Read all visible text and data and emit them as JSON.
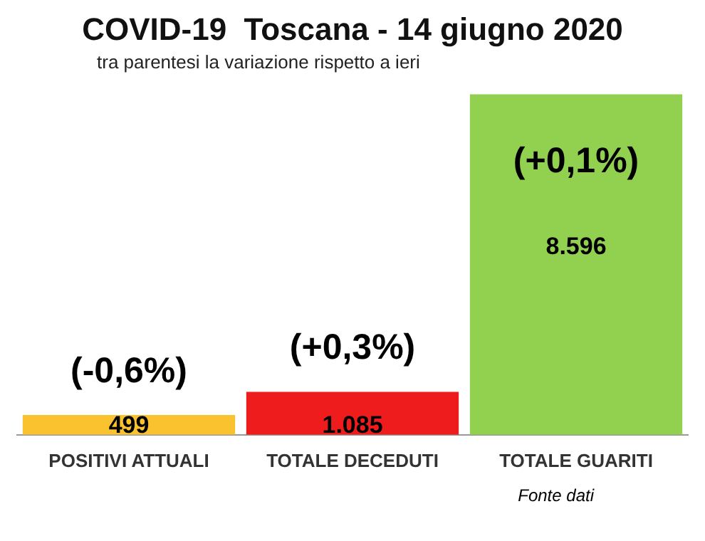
{
  "chart_data": {
    "type": "bar",
    "title": "COVID-19  Toscana - 14 giugno 2020",
    "subtitle": "tra parentesi la variazione rispetto a ieri",
    "categories": [
      "POSITIVI ATTUALI",
      "TOTALE DECEDUTI",
      "TOTALE GUARITI"
    ],
    "values": [
      499,
      1085,
      8596
    ],
    "colors": [
      "#f9c22e",
      "#ee1c1c",
      "#92d050"
    ],
    "value_labels": [
      "499",
      "1.085",
      "8.596"
    ],
    "annotations": [
      "(-0,6%)",
      "(+0,3%)",
      "(+0,1%)",
      "Fonte dati"
    ]
  }
}
